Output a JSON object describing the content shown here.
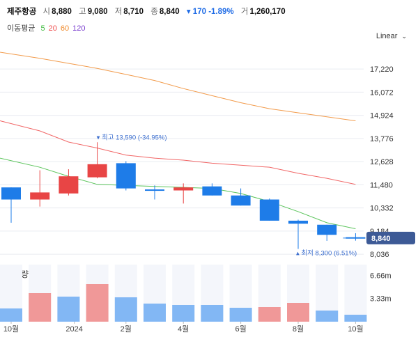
{
  "header": {
    "name": "제주항공",
    "open_label": "시",
    "open": "8,880",
    "high_label": "고",
    "high": "9,080",
    "low_label": "저",
    "low": "8,710",
    "close_label": "종",
    "close": "8,840",
    "change": "▾ 170 -1.89%",
    "volume_label": "거",
    "volume": "1,260,170"
  },
  "ma_legend": {
    "title": "이동평균",
    "items": [
      {
        "label": "5",
        "color": "#3dba3d"
      },
      {
        "label": "20",
        "color": "#ee4b4b"
      },
      {
        "label": "60",
        "color": "#f08a2c"
      },
      {
        "label": "120",
        "color": "#7b3fcf"
      }
    ]
  },
  "scale_mode": "Linear",
  "chart_data": {
    "type": "candlestick",
    "price_axis": {
      "ticks": [
        "17,220",
        "16,072",
        "14,924",
        "13,776",
        "12,628",
        "11,480",
        "10,332",
        "9,184",
        "8,036"
      ],
      "tick_values": [
        17220,
        16072,
        14924,
        13776,
        12628,
        11480,
        10332,
        9184,
        8036
      ],
      "range": [
        7800,
        18500
      ]
    },
    "current_price": {
      "value": 8840,
      "label": "8,840"
    },
    "candles": [
      {
        "o": 11350,
        "h": 11350,
        "l": 9600,
        "c": 10750
      },
      {
        "o": 10750,
        "h": 12200,
        "l": 10400,
        "c": 11100
      },
      {
        "o": 11050,
        "h": 12250,
        "l": 10950,
        "c": 11900
      },
      {
        "o": 11850,
        "h": 13590,
        "l": 11800,
        "c": 12500
      },
      {
        "o": 12550,
        "h": 12650,
        "l": 11200,
        "c": 11300
      },
      {
        "o": 11250,
        "h": 11450,
        "l": 10750,
        "c": 11180
      },
      {
        "o": 11200,
        "h": 11550,
        "l": 10550,
        "c": 11350
      },
      {
        "o": 11400,
        "h": 11550,
        "l": 10950,
        "c": 10950
      },
      {
        "o": 10950,
        "h": 11300,
        "l": 10450,
        "c": 10450
      },
      {
        "o": 10750,
        "h": 10800,
        "l": 9700,
        "c": 9700
      },
      {
        "o": 9700,
        "h": 9750,
        "l": 8300,
        "c": 9550
      },
      {
        "o": 9500,
        "h": 9500,
        "l": 8700,
        "c": 9000
      },
      {
        "o": 8880,
        "h": 9080,
        "l": 8710,
        "c": 8840
      }
    ],
    "ma_series": [
      {
        "name": "5",
        "color": "#3dba3d",
        "values": [
          12800,
          12350,
          11900,
          11500,
          11450,
          11400,
          11350,
          11300,
          11050,
          10650,
          10150,
          9600,
          9300
        ]
      },
      {
        "name": "20",
        "color": "#ee4b4b",
        "values": [
          14650,
          14150,
          13600,
          13300,
          12950,
          12800,
          12700,
          12550,
          12450,
          12350,
          12050,
          11800,
          11500
        ]
      },
      {
        "name": "60",
        "color": "#f08a2c",
        "values": [
          18050,
          17750,
          17500,
          17250,
          16950,
          16650,
          16250,
          15900,
          15550,
          15250,
          15050,
          14850,
          14650
        ]
      }
    ],
    "annotations": [
      {
        "kind": "high",
        "text": "▾ 최고 13,590 (-34.95%)",
        "candle": 3,
        "price": 13590
      },
      {
        "kind": "low",
        "text": "▴ 최저 8,300 (6.51%)",
        "candle": 10,
        "price": 8300
      }
    ],
    "volume": {
      "title": "거래량",
      "ticks": [
        "6.66m",
        "3.33m"
      ],
      "tick_values": [
        6.66,
        3.33
      ],
      "max": 8.2,
      "values": [
        1.9,
        4.1,
        3.6,
        5.4,
        3.5,
        2.6,
        2.4,
        2.4,
        2.0,
        2.1,
        2.7,
        1.6,
        1.0
      ],
      "up": [
        false,
        true,
        false,
        true,
        false,
        false,
        false,
        false,
        false,
        true,
        true,
        false,
        false
      ]
    },
    "x_axis": {
      "labels": [
        {
          "text": "10월",
          "candle": 0
        },
        {
          "text": "2024",
          "candle": 2.2
        },
        {
          "text": "2월",
          "candle": 4
        },
        {
          "text": "4월",
          "candle": 6
        },
        {
          "text": "6월",
          "candle": 8
        },
        {
          "text": "8월",
          "candle": 10
        },
        {
          "text": "10월",
          "candle": 12
        }
      ]
    },
    "colors": {
      "up": "#e84545",
      "down": "#1e7ce8",
      "vol_up": "#f09898",
      "vol_down": "#82b7f4",
      "vol_bg": "#f4f6fb",
      "grid": "#e9ecf1",
      "badge": "#3d5a96"
    }
  }
}
